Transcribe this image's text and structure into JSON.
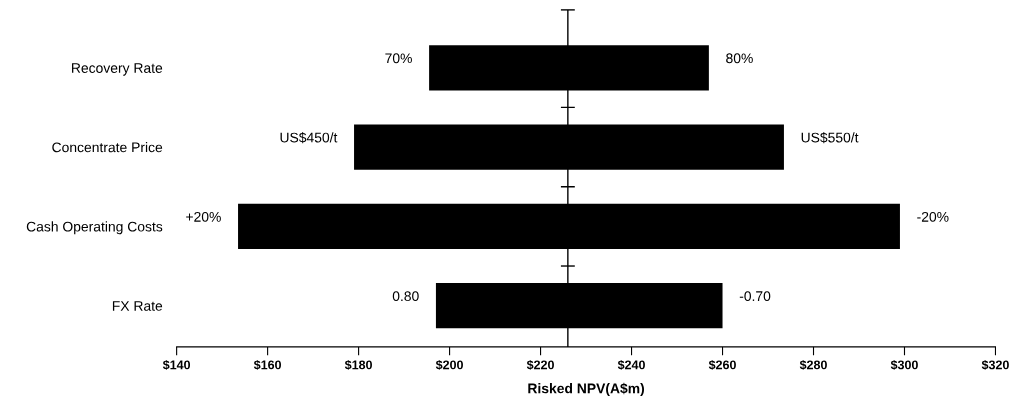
{
  "chart_data": {
    "type": "bar",
    "orientation": "horizontal",
    "xlabel": "Risked NPV(A$m)",
    "categories": [
      "Recovery Rate",
      "Concentrate Price",
      "Cash Operating Costs",
      "FX Rate"
    ],
    "base": [
      195.5,
      179,
      153.5,
      197
    ],
    "values": [
      61.5,
      94.5,
      145.5,
      63
    ],
    "color": "#000000",
    "xlim": [
      140,
      320
    ],
    "xticks": [
      {
        "value": 140,
        "label": "$140"
      },
      {
        "value": 160,
        "label": "$160"
      },
      {
        "value": 180,
        "label": "$180"
      },
      {
        "value": 200,
        "label": "$200"
      },
      {
        "value": 220,
        "label": "$220"
      },
      {
        "value": 240,
        "label": "$240"
      },
      {
        "value": 260,
        "label": "$260"
      },
      {
        "value": 280,
        "label": "$280"
      },
      {
        "value": 300,
        "label": "$300"
      },
      {
        "value": 320,
        "label": "$320"
      }
    ],
    "ref_lines": [
      {
        "axis": "x",
        "value": 226,
        "color": "#000000"
      }
    ],
    "annotations": [
      {
        "text": "70%",
        "x": 195.5,
        "y": "Recovery Rate"
      },
      {
        "text": "80%",
        "x": 257,
        "y": "Recovery Rate"
      },
      {
        "text": "US$450/t",
        "x": 179,
        "y": "Concentrate Price"
      },
      {
        "text": "US$550/t",
        "x": 273.5,
        "y": "Concentrate Price"
      },
      {
        "text": "+20%",
        "x": 153.5,
        "y": "Cash Operating Costs"
      },
      {
        "text": "-20%",
        "x": 299,
        "y": "Cash Operating Costs"
      },
      {
        "text": "0.80",
        "x": 197,
        "y": "FX Rate"
      },
      {
        "text": "-0.70",
        "x": 260,
        "y": "FX Rate"
      }
    ],
    "grid": false
  }
}
